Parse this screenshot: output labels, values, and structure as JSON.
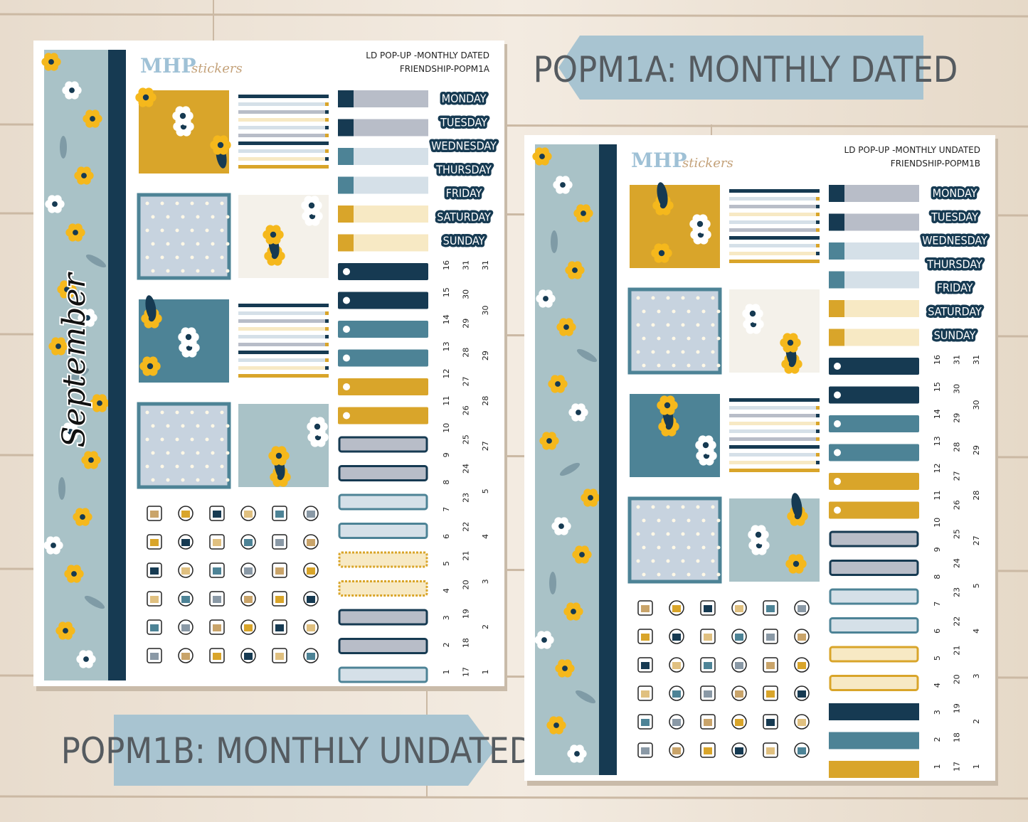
{
  "banners": {
    "dated": "POPM1A: MONTHLY DATED",
    "undated": "POPM1B: MONTHLY UNDATED"
  },
  "sheets": [
    {
      "brand": "MHP",
      "brand_script": "stickers",
      "title": "LD POP-UP -MONTHLY DATED",
      "code": "FRIENDSHIP-POPM1A",
      "month": "September",
      "weekdays": [
        "MONDAY",
        "TUESDAY",
        "WEDNESDAY",
        "THURSDAY",
        "FRIDAY",
        "SATURDAY",
        "SUNDAY"
      ],
      "date_columns": [
        [
          1,
          2,
          3,
          4,
          5,
          6,
          7,
          8,
          9,
          10,
          11,
          12,
          13,
          14,
          15,
          16
        ],
        [
          17,
          18,
          19,
          20,
          21,
          22,
          23,
          24,
          25,
          26,
          27,
          28,
          29,
          30,
          31
        ],
        [
          1,
          2,
          3,
          4,
          5,
          27,
          28,
          29,
          30,
          31
        ]
      ]
    },
    {
      "brand": "MHP",
      "brand_script": "stickers",
      "title": "LD POP-UP -MONTHLY UNDATED",
      "code": "FRIENDSHIP-POPM1B",
      "weekdays": [
        "MONDAY",
        "TUESDAY",
        "WEDNESDAY",
        "THURSDAY",
        "FRIDAY",
        "SATURDAY",
        "SUNDAY"
      ],
      "date_columns": [
        [
          1,
          2,
          3,
          4,
          5,
          6,
          7,
          8,
          9,
          10,
          11,
          12,
          13,
          14,
          15,
          16
        ],
        [
          17,
          18,
          19,
          20,
          21,
          22,
          23,
          24,
          25,
          26,
          27,
          28,
          29,
          30,
          31
        ],
        [
          1,
          2,
          3,
          4,
          5,
          27,
          28,
          29,
          30,
          31
        ]
      ]
    }
  ]
}
